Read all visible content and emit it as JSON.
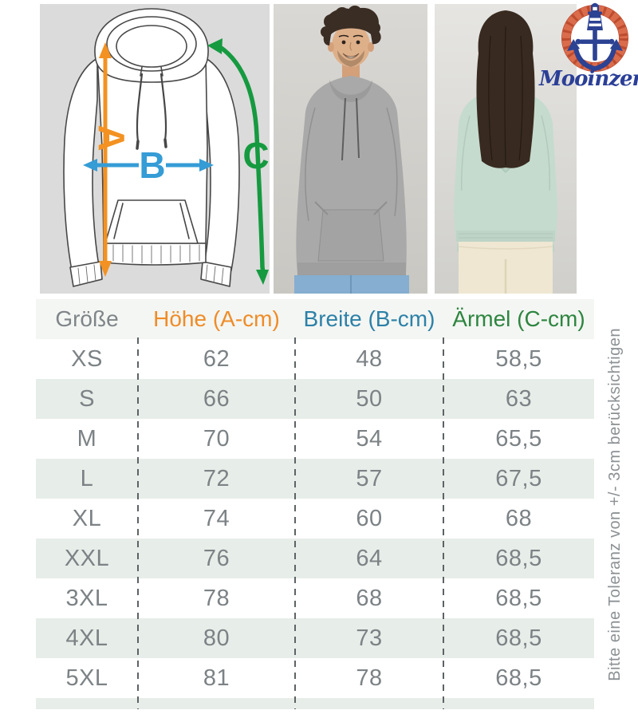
{
  "brand": {
    "name": "Mooinzen"
  },
  "hero": {
    "diagram": {
      "label_a": "A",
      "label_b": "B",
      "label_c": "C"
    },
    "photos": {
      "left": "man-front-grey-hoodie",
      "right": "woman-back-mint-hoodie"
    }
  },
  "colors": {
    "arrow_a_orange": "#f39222",
    "arrow_b_blue": "#359cd6",
    "arrow_c_green": "#169a40",
    "header_groesse_gray": "#7f8588",
    "header_hoehe_orange": "#ef8c28",
    "header_breite_blue": "#2d81a8",
    "header_aermel_green": "#2e8540",
    "row_alt_bg": "#e7ede8",
    "table_text_gray": "#7c8285",
    "logo_navy": "#2c4293",
    "logo_rope": "#db6c4b",
    "diagram_bg": "#dbdbdb"
  },
  "size_table": {
    "headers": [
      {
        "key": "groesse",
        "label": "Größe",
        "color": "#7f8588"
      },
      {
        "key": "hoehe",
        "label": "Höhe (A-cm)",
        "color": "#ef8c28"
      },
      {
        "key": "breite",
        "label": "Breite (B-cm)",
        "color": "#2d81a8"
      },
      {
        "key": "aermel",
        "label": "Ärmel (C-cm)",
        "color": "#2e8540"
      }
    ],
    "rows": [
      {
        "size": "XS",
        "hoehe": "62",
        "breite": "48",
        "aermel": "58,5"
      },
      {
        "size": "S",
        "hoehe": "66",
        "breite": "50",
        "aermel": "63"
      },
      {
        "size": "M",
        "hoehe": "70",
        "breite": "54",
        "aermel": "65,5"
      },
      {
        "size": "L",
        "hoehe": "72",
        "breite": "57",
        "aermel": "67,5"
      },
      {
        "size": "XL",
        "hoehe": "74",
        "breite": "60",
        "aermel": "68"
      },
      {
        "size": "XXL",
        "hoehe": "76",
        "breite": "64",
        "aermel": "68,5"
      },
      {
        "size": "3XL",
        "hoehe": "78",
        "breite": "68",
        "aermel": "68,5"
      },
      {
        "size": "4XL",
        "hoehe": "80",
        "breite": "73",
        "aermel": "68,5"
      },
      {
        "size": "5XL",
        "hoehe": "81",
        "breite": "78",
        "aermel": "68,5"
      }
    ]
  },
  "tolerance_note": "Bitte eine Toleranz von +/- 3cm berücksichtigen",
  "chart_data": {
    "type": "table",
    "columns": [
      "Größe",
      "Höhe (A-cm)",
      "Breite (B-cm)",
      "Ärmel (C-cm)"
    ],
    "rows": [
      [
        "XS",
        62,
        48,
        58.5
      ],
      [
        "S",
        66,
        50,
        63
      ],
      [
        "M",
        70,
        54,
        65.5
      ],
      [
        "L",
        72,
        57,
        67.5
      ],
      [
        "XL",
        74,
        60,
        68
      ],
      [
        "XXL",
        76,
        64,
        68.5
      ],
      [
        "3XL",
        78,
        68,
        68.5
      ],
      [
        "4XL",
        80,
        73,
        68.5
      ],
      [
        "5XL",
        81,
        78,
        68.5
      ]
    ],
    "note": "Bitte eine Toleranz von +/- 3cm berücksichtigen"
  }
}
